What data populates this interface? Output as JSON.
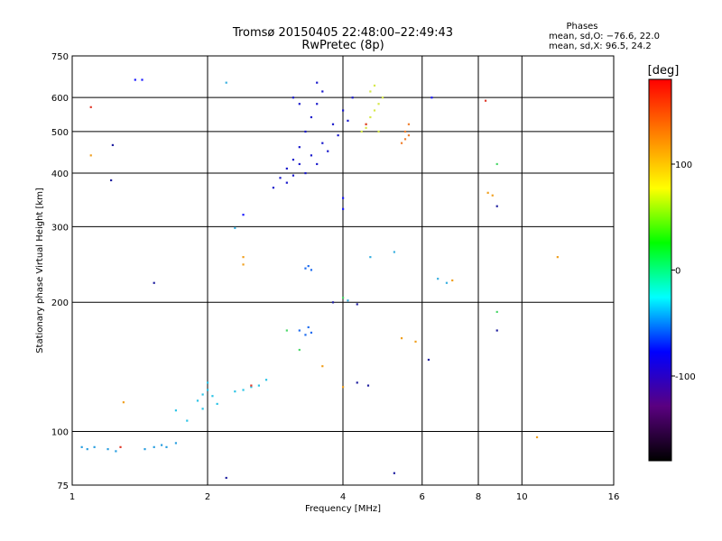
{
  "chart_data": {
    "type": "scatter",
    "title": "Tromsø 20150405 22:48:00–22:49:43",
    "subtitle": "RwPretec (8p)",
    "phases": {
      "heading": "Phases",
      "line1": "mean, sd,O: −76.6, 22.0",
      "line2": "mean, sd,X:  96.5, 24.2"
    },
    "xlabel": "Frequency [MHz]",
    "ylabel": "Stationary phase Virtual Height [km]",
    "x_scale": "log",
    "y_scale": "log",
    "xlim": [
      1,
      16
    ],
    "ylim": [
      75,
      750
    ],
    "grid": true,
    "xticks": [
      1,
      2,
      4,
      6,
      8,
      10,
      16
    ],
    "yticks": [
      75,
      100,
      200,
      300,
      400,
      500,
      600,
      750
    ],
    "x_grid": [
      2,
      4,
      6,
      8,
      10
    ],
    "y_grid": [
      100,
      200,
      300,
      400,
      500,
      600
    ],
    "colorbar": {
      "label": "[deg]",
      "range": [
        -180,
        180
      ],
      "ticks": [
        100,
        0,
        -100
      ],
      "colors": [
        "#000000",
        "#5a0080",
        "#0000ff",
        "#00ffff",
        "#00ff00",
        "#ffff00",
        "#ff8000",
        "#ff0000"
      ]
    },
    "series": [
      {
        "color": "#2a9fe0",
        "points": [
          [
            1.05,
            92
          ],
          [
            1.08,
            91
          ],
          [
            1.12,
            92
          ],
          [
            1.2,
            91
          ],
          [
            1.25,
            90
          ],
          [
            1.45,
            91
          ],
          [
            1.52,
            92
          ],
          [
            1.58,
            93
          ],
          [
            1.62,
            92
          ],
          [
            1.7,
            94
          ]
        ]
      },
      {
        "color": "#2bc4e6",
        "points": [
          [
            1.9,
            118
          ],
          [
            1.95,
            122
          ],
          [
            2.0,
            125
          ],
          [
            2.05,
            121
          ],
          [
            2.0,
            130
          ],
          [
            1.95,
            113
          ],
          [
            2.1,
            116
          ],
          [
            2.3,
            124
          ],
          [
            2.4,
            125
          ],
          [
            2.5,
            127
          ],
          [
            2.6,
            128
          ],
          [
            2.7,
            132
          ],
          [
            1.7,
            112
          ],
          [
            1.8,
            106
          ]
        ]
      },
      {
        "color": "#1e6cf0",
        "points": [
          [
            3.2,
            172
          ],
          [
            3.3,
            168
          ],
          [
            3.35,
            175
          ],
          [
            3.4,
            170
          ],
          [
            3.3,
            240
          ],
          [
            3.35,
            243
          ],
          [
            3.4,
            238
          ]
        ]
      },
      {
        "color": "#1a1acc",
        "points": [
          [
            2.8,
            370
          ],
          [
            2.9,
            390
          ],
          [
            3.0,
            410
          ],
          [
            3.1,
            430
          ],
          [
            3.2,
            460
          ],
          [
            3.3,
            500
          ],
          [
            3.4,
            540
          ],
          [
            3.5,
            580
          ],
          [
            3.6,
            620
          ],
          [
            3.0,
            380
          ],
          [
            3.1,
            395
          ],
          [
            3.2,
            420
          ],
          [
            3.4,
            440
          ],
          [
            3.6,
            470
          ],
          [
            3.8,
            520
          ],
          [
            4.0,
            560
          ],
          [
            4.2,
            600
          ],
          [
            3.3,
            400
          ],
          [
            3.5,
            420
          ],
          [
            3.7,
            450
          ],
          [
            3.9,
            490
          ],
          [
            4.1,
            530
          ],
          [
            3.1,
            600
          ],
          [
            3.2,
            580
          ],
          [
            3.5,
            650
          ]
        ]
      },
      {
        "color": "#d6e84a",
        "points": [
          [
            4.4,
            500
          ],
          [
            4.5,
            520
          ],
          [
            4.6,
            540
          ],
          [
            4.7,
            560
          ],
          [
            4.8,
            580
          ],
          [
            4.9,
            600
          ],
          [
            4.6,
            620
          ],
          [
            4.7,
            640
          ],
          [
            4.5,
            510
          ],
          [
            4.8,
            500
          ]
        ]
      },
      {
        "color": "#f08030",
        "points": [
          [
            5.4,
            470
          ],
          [
            5.5,
            480
          ],
          [
            5.6,
            490
          ],
          [
            5.5,
            500
          ],
          [
            5.6,
            520
          ]
        ]
      },
      {
        "color": "#e03a2a",
        "points": [
          [
            2.5,
            128
          ],
          [
            1.28,
            92
          ],
          [
            1.1,
            570
          ],
          [
            8.3,
            590
          ],
          [
            4.5,
            520
          ]
        ]
      },
      {
        "color": "#f0a020",
        "points": [
          [
            1.1,
            440
          ],
          [
            1.3,
            117
          ],
          [
            2.4,
            255
          ],
          [
            2.4,
            245
          ],
          [
            5.4,
            165
          ],
          [
            5.8,
            162
          ],
          [
            8.4,
            360
          ],
          [
            8.6,
            355
          ],
          [
            10.8,
            97
          ],
          [
            12.0,
            255
          ],
          [
            7.0,
            225
          ],
          [
            3.6,
            142
          ],
          [
            4.0,
            127
          ]
        ]
      },
      {
        "color": "#2020a0",
        "points": [
          [
            1.52,
            222
          ],
          [
            1.23,
            465
          ],
          [
            1.22,
            385
          ],
          [
            3.8,
            200
          ],
          [
            4.3,
            198
          ],
          [
            6.2,
            147
          ],
          [
            8.8,
            172
          ],
          [
            8.8,
            335
          ],
          [
            4.55,
            128
          ],
          [
            4.3,
            130
          ],
          [
            5.2,
            80
          ],
          [
            2.2,
            78
          ]
        ]
      },
      {
        "color": "#4cd86a",
        "points": [
          [
            8.8,
            420
          ],
          [
            8.8,
            190
          ],
          [
            4.0,
            205
          ],
          [
            3.2,
            155
          ],
          [
            3.0,
            172
          ]
        ]
      },
      {
        "color": "#3ab0e0",
        "points": [
          [
            6.5,
            227
          ],
          [
            6.8,
            222
          ],
          [
            5.2,
            262
          ],
          [
            4.6,
            255
          ],
          [
            4.1,
            202
          ],
          [
            2.3,
            298
          ],
          [
            2.2,
            650
          ]
        ]
      },
      {
        "color": "#1a1aff",
        "points": [
          [
            1.38,
            660
          ],
          [
            1.43,
            660
          ],
          [
            4.0,
            350
          ],
          [
            4.0,
            330
          ],
          [
            6.3,
            600
          ],
          [
            2.4,
            320
          ]
        ]
      }
    ]
  }
}
